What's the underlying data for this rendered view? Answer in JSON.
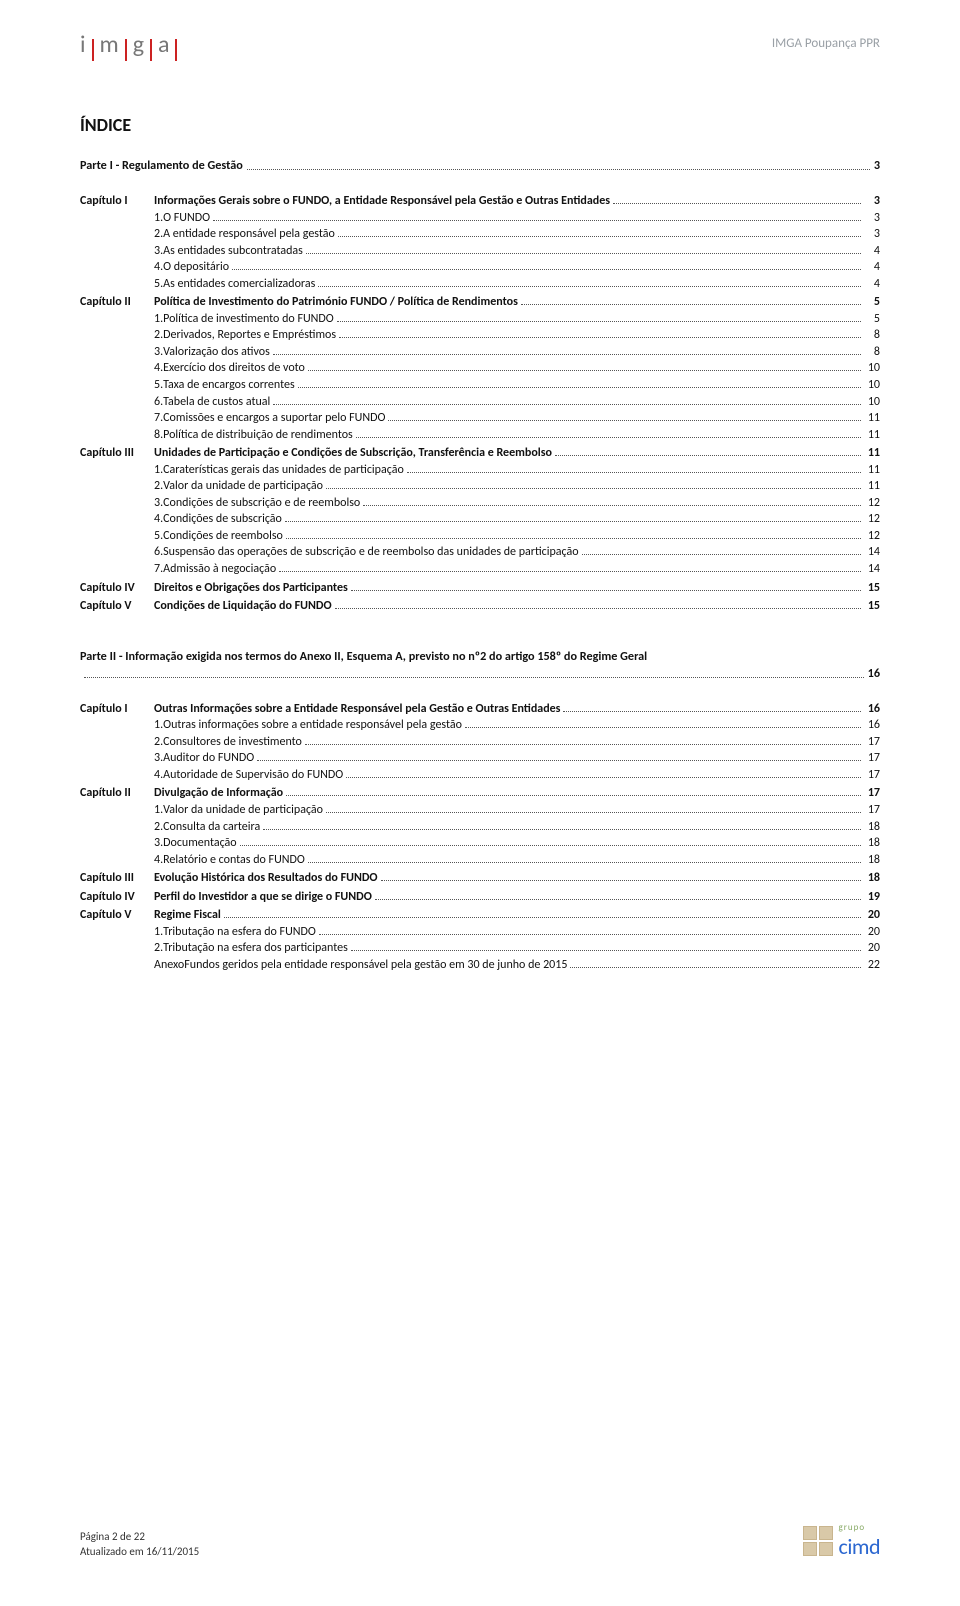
{
  "header": {
    "product": "IMGA Poupança PPR"
  },
  "logo": {
    "letters": [
      "i",
      "m",
      "g",
      "a"
    ]
  },
  "title": "ÍNDICE",
  "parte1": {
    "head": {
      "label": "Parte I - Regulamento de Gestão",
      "page": "3"
    },
    "rows": [
      {
        "t": "chap",
        "left": "Capítulo I",
        "txt": "Informações Gerais sobre o FUNDO, a Entidade Responsável pela Gestão e Outras Entidades",
        "pg": "3"
      },
      {
        "t": "sub",
        "left": "1.",
        "txt": "O FUNDO",
        "pg": "3"
      },
      {
        "t": "sub",
        "left": "2.",
        "txt": "A entidade responsável pela gestão",
        "pg": "3"
      },
      {
        "t": "sub",
        "left": "3.",
        "txt": "As entidades subcontratadas",
        "pg": "4"
      },
      {
        "t": "sub",
        "left": "4.",
        "txt": "O depositário",
        "pg": "4"
      },
      {
        "t": "sub",
        "left": "5.",
        "txt": "As entidades comercializadoras",
        "pg": "4"
      },
      {
        "t": "chap",
        "left": "Capítulo II",
        "txt": "Política de Investimento do Património FUNDO / Política de Rendimentos",
        "pg": "5"
      },
      {
        "t": "sub",
        "left": "1.",
        "txt": "Política de investimento do FUNDO",
        "pg": "5"
      },
      {
        "t": "sub",
        "left": "2.",
        "txt": "Derivados, Reportes e Empréstimos",
        "pg": "8"
      },
      {
        "t": "sub",
        "left": "3.",
        "txt": "Valorização dos ativos",
        "pg": "8"
      },
      {
        "t": "sub",
        "left": "4.",
        "txt": "Exercício dos direitos de voto",
        "pg": "10"
      },
      {
        "t": "sub",
        "left": "5.",
        "txt": "Taxa de encargos correntes",
        "pg": "10"
      },
      {
        "t": "sub",
        "left": "6.",
        "txt": "Tabela de custos atual",
        "pg": "10"
      },
      {
        "t": "sub",
        "left": "7.",
        "txt": "Comissões e encargos a suportar pelo FUNDO",
        "pg": "11"
      },
      {
        "t": "sub",
        "left": "8.",
        "txt": "Política de distribuição de rendimentos",
        "pg": "11"
      },
      {
        "t": "chap",
        "left": "Capítulo III",
        "txt": "Unidades de Participação e Condições de Subscrição, Transferência e Reembolso",
        "pg": "11"
      },
      {
        "t": "sub",
        "left": "1.",
        "txt": "Caraterísticas gerais das unidades de participação",
        "pg": "11"
      },
      {
        "t": "sub",
        "left": "2.",
        "txt": "Valor da unidade de participação",
        "pg": "11"
      },
      {
        "t": "sub",
        "left": "3.",
        "txt": "Condições de subscrição e de reembolso",
        "pg": "12"
      },
      {
        "t": "sub",
        "left": "4.",
        "txt": "Condições de subscrição",
        "pg": "12"
      },
      {
        "t": "sub",
        "left": "5.",
        "txt": "Condições de reembolso",
        "pg": "12"
      },
      {
        "t": "sub",
        "left": "6.",
        "txt": "Suspensão das operações de subscrição e de reembolso das unidades de participação",
        "pg": "14"
      },
      {
        "t": "sub",
        "left": "7.",
        "txt": "Admissão à negociação",
        "pg": "14"
      },
      {
        "t": "chap",
        "left": "Capítulo IV",
        "txt": "Direitos e Obrigações dos Participantes",
        "pg": "15"
      },
      {
        "t": "chap",
        "left": "Capítulo V",
        "txt": "Condições de Liquidação do FUNDO",
        "pg": "15"
      }
    ]
  },
  "parte2": {
    "head": {
      "label": "Parte II - Informação exigida nos termos do Anexo II, Esquema A, previsto no nº2 do artigo 158º do Regime Geral",
      "page": "16"
    },
    "rows": [
      {
        "t": "chap",
        "left": "Capítulo I",
        "txt": "Outras Informações sobre a Entidade Responsável pela Gestão e Outras Entidades",
        "pg": "16"
      },
      {
        "t": "sub",
        "left": "1.",
        "txt": "Outras informações sobre a entidade responsável pela gestão",
        "pg": "16"
      },
      {
        "t": "sub",
        "left": "2.",
        "txt": "Consultores de investimento",
        "pg": "17"
      },
      {
        "t": "sub",
        "left": "3.",
        "txt": "Auditor do FUNDO",
        "pg": "17"
      },
      {
        "t": "sub",
        "left": "4.",
        "txt": "Autoridade de Supervisão do FUNDO",
        "pg": "17"
      },
      {
        "t": "chap",
        "left": "Capítulo II",
        "txt": "Divulgação de Informação",
        "pg": "17"
      },
      {
        "t": "sub",
        "left": "1.",
        "txt": "Valor da unidade de participação",
        "pg": "17"
      },
      {
        "t": "sub",
        "left": "2.",
        "txt": "Consulta da carteira",
        "pg": "18"
      },
      {
        "t": "sub",
        "left": "3.",
        "txt": "Documentação",
        "pg": "18"
      },
      {
        "t": "sub",
        "left": "4.",
        "txt": "Relatório e contas do FUNDO",
        "pg": "18"
      },
      {
        "t": "chap",
        "left": "Capítulo III",
        "txt": "Evolução Histórica dos Resultados do FUNDO",
        "pg": "18"
      },
      {
        "t": "chap",
        "left": "Capítulo IV",
        "txt": "Perfil do Investidor a que se dirige o FUNDO",
        "pg": "19"
      },
      {
        "t": "chap",
        "left": "Capítulo V",
        "txt": "Regime Fiscal",
        "pg": "20"
      },
      {
        "t": "sub",
        "left": "1.",
        "txt": "Tributação na esfera do FUNDO",
        "pg": "20"
      },
      {
        "t": "sub",
        "left": "2.",
        "txt": "Tributação na esfera dos participantes",
        "pg": "20"
      },
      {
        "t": "subanx",
        "left": "Anexo",
        "txt": "Fundos geridos pela entidade responsável pela gestão em 30 de junho de 2015",
        "pg": "22"
      }
    ]
  },
  "footer": {
    "page": "Página 2 de 22",
    "updated": "Atualizado em 16/11/2015",
    "group": "grupo",
    "brand": "cimd"
  }
}
